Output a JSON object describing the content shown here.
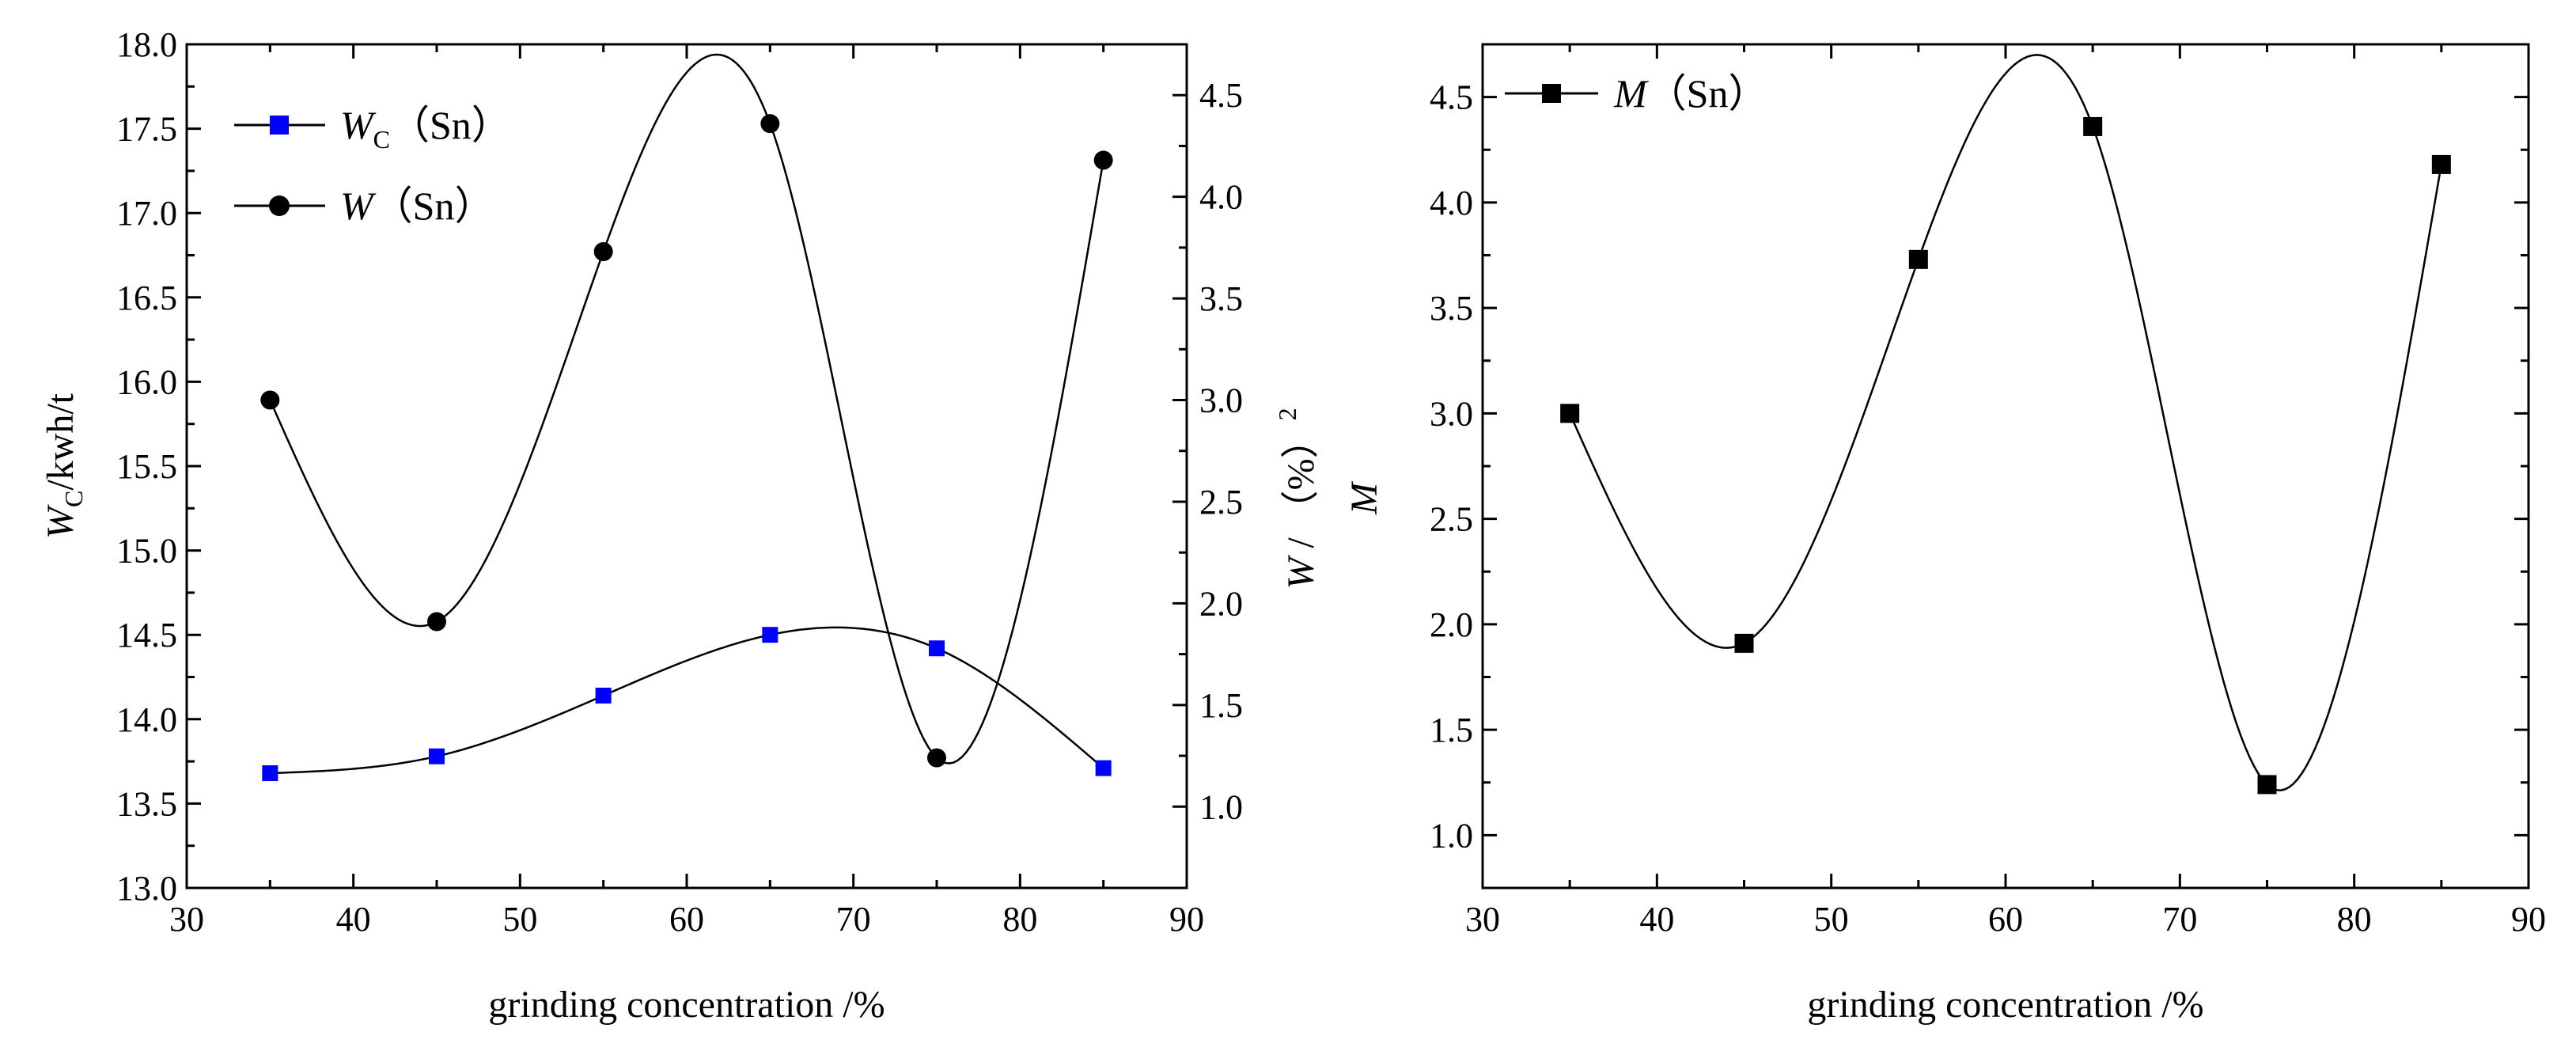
{
  "colors": {
    "series_wc": "#0000ff",
    "series_w": "#000000",
    "series_m": "#000000",
    "axis": "#000000",
    "background": "#ffffff"
  },
  "chart_data": [
    {
      "type": "line",
      "panel": "left",
      "xlabel": "grinding concentration /%",
      "xlim": [
        30,
        90
      ],
      "xticks": [
        "30",
        "40",
        "50",
        "60",
        "70",
        "80",
        "90"
      ],
      "left_axis": {
        "label_symbol": "W",
        "label_subscript": "C",
        "label_unit": "/kwh/t",
        "ylim": [
          13.0,
          18.0
        ],
        "yticks": [
          "13.0",
          "13.5",
          "14.0",
          "14.5",
          "15.0",
          "15.5",
          "16.0",
          "16.5",
          "17.0",
          "17.5",
          "18.0"
        ]
      },
      "right_axis": {
        "label_symbol": "W",
        "label_unit": " / （%）",
        "label_superscript": "2",
        "ylim": [
          0.6,
          4.75
        ],
        "yticks": [
          "1.0",
          "1.5",
          "2.0",
          "2.5",
          "3.0",
          "3.5",
          "4.0",
          "4.5"
        ]
      },
      "legend_position": "top-left",
      "series": [
        {
          "name_symbol": "W",
          "name_subscript": "C",
          "name_suffix": "（Sn）",
          "axis": "left",
          "marker": "square",
          "x": [
            35,
            45,
            55,
            65,
            75,
            85
          ],
          "values": [
            13.68,
            13.78,
            14.14,
            14.5,
            14.42,
            13.71
          ]
        },
        {
          "name_symbol": "W",
          "name_suffix": "（Sn）",
          "axis": "right",
          "marker": "circle",
          "x": [
            35,
            45,
            55,
            65,
            75,
            85
          ],
          "values": [
            3.0,
            1.91,
            3.73,
            4.36,
            1.24,
            4.18
          ]
        }
      ]
    },
    {
      "type": "line",
      "panel": "right",
      "xlabel": "grinding concentration /%",
      "xlim": [
        30,
        90
      ],
      "xticks": [
        "30",
        "40",
        "50",
        "60",
        "70",
        "80",
        "90"
      ],
      "ylabel": "M",
      "ylim": [
        0.75,
        4.75
      ],
      "yticks": [
        "1.0",
        "1.5",
        "2.0",
        "2.5",
        "3.0",
        "3.5",
        "4.0",
        "4.5"
      ],
      "legend_position": "top-left",
      "series": [
        {
          "name_symbol": "M",
          "name_suffix": "（Sn）",
          "marker": "square",
          "x": [
            35,
            45,
            55,
            65,
            75,
            85
          ],
          "values": [
            3.0,
            1.91,
            3.73,
            4.36,
            1.24,
            4.18
          ]
        }
      ]
    }
  ]
}
